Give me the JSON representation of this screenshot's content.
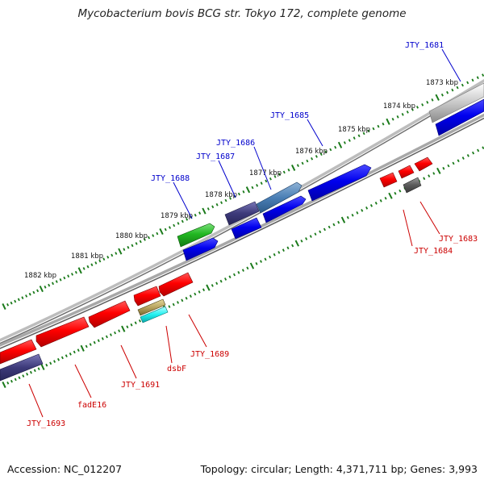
{
  "title": "Mycobacterium bovis BCG str. Tokyo 172, complete genome",
  "footer": {
    "accession": "Accession: NC_012207",
    "summary": "Topology: circular; Length: 4,371,711 bp; Genes: 3,993"
  },
  "ticks": [
    {
      "label": "1873 kbp"
    },
    {
      "label": "1874 kbp"
    },
    {
      "label": "1875 kbp"
    },
    {
      "label": "1876 kbp"
    },
    {
      "label": "1877 kbp"
    },
    {
      "label": "1878 kbp"
    },
    {
      "label": "1879 kbp"
    },
    {
      "label": "1880 kbp"
    },
    {
      "label": "1881 kbp"
    },
    {
      "label": "1882 kbp"
    }
  ],
  "gene_labels": [
    {
      "name": "JTY_1681",
      "strand": "forward"
    },
    {
      "name": "JTY_1685",
      "strand": "forward"
    },
    {
      "name": "JTY_1686",
      "strand": "forward"
    },
    {
      "name": "JTY_1687",
      "strand": "forward"
    },
    {
      "name": "JTY_1688",
      "strand": "forward"
    },
    {
      "name": "JTY_1683",
      "strand": "reverse"
    },
    {
      "name": "JTY_1684",
      "strand": "reverse"
    },
    {
      "name": "JTY_1689",
      "strand": "reverse"
    },
    {
      "name": "dsbF",
      "strand": "reverse"
    },
    {
      "name": "JTY_1691",
      "strand": "reverse"
    },
    {
      "name": "fadE16",
      "strand": "reverse"
    },
    {
      "name": "JTY_1693",
      "strand": "reverse"
    }
  ],
  "colors": {
    "forward_label": "#0000cc",
    "reverse_label": "#cc0000",
    "tick_dots": "#1a7a1a",
    "backbone": "#888888"
  }
}
